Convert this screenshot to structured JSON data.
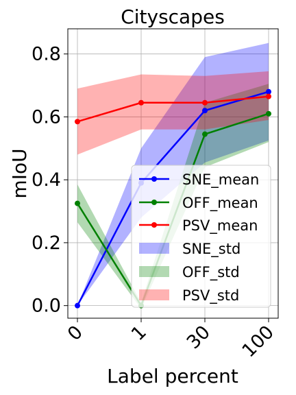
{
  "chart_data": {
    "type": "line",
    "title": "Cityscapes",
    "xlabel": "Label percent",
    "ylabel": "mIoU",
    "categories": [
      "0",
      "1",
      "30",
      "100"
    ],
    "yticks": [
      "0.0",
      "0.2",
      "0.4",
      "0.6",
      "0.8"
    ],
    "ylim": [
      -0.04,
      0.88
    ],
    "grid": true,
    "legend_position": "lower-right",
    "series": [
      {
        "name": "SNE_mean",
        "color": "#0000ff",
        "values": [
          0.0,
          0.39,
          0.62,
          0.68
        ]
      },
      {
        "name": "OFF_mean",
        "color": "#008000",
        "values": [
          0.325,
          0.0,
          0.545,
          0.61
        ]
      },
      {
        "name": "PSV_mean",
        "color": "#ff0000",
        "values": [
          0.585,
          0.645,
          0.645,
          0.665
        ]
      }
    ],
    "bands": [
      {
        "name": "SNE_std",
        "color": "#0000ff",
        "lower": [
          0.0,
          0.28,
          0.455,
          0.525
        ],
        "upper": [
          0.0,
          0.5,
          0.79,
          0.835
        ]
      },
      {
        "name": "OFF_std",
        "color": "#008000",
        "lower": [
          0.265,
          -0.01,
          0.44,
          0.52
        ],
        "upper": [
          0.385,
          0.01,
          0.645,
          0.705
        ]
      },
      {
        "name": "PSV_std",
        "color": "#ff0000",
        "lower": [
          0.48,
          0.56,
          0.56,
          0.59
        ],
        "upper": [
          0.69,
          0.735,
          0.73,
          0.745
        ]
      }
    ]
  }
}
